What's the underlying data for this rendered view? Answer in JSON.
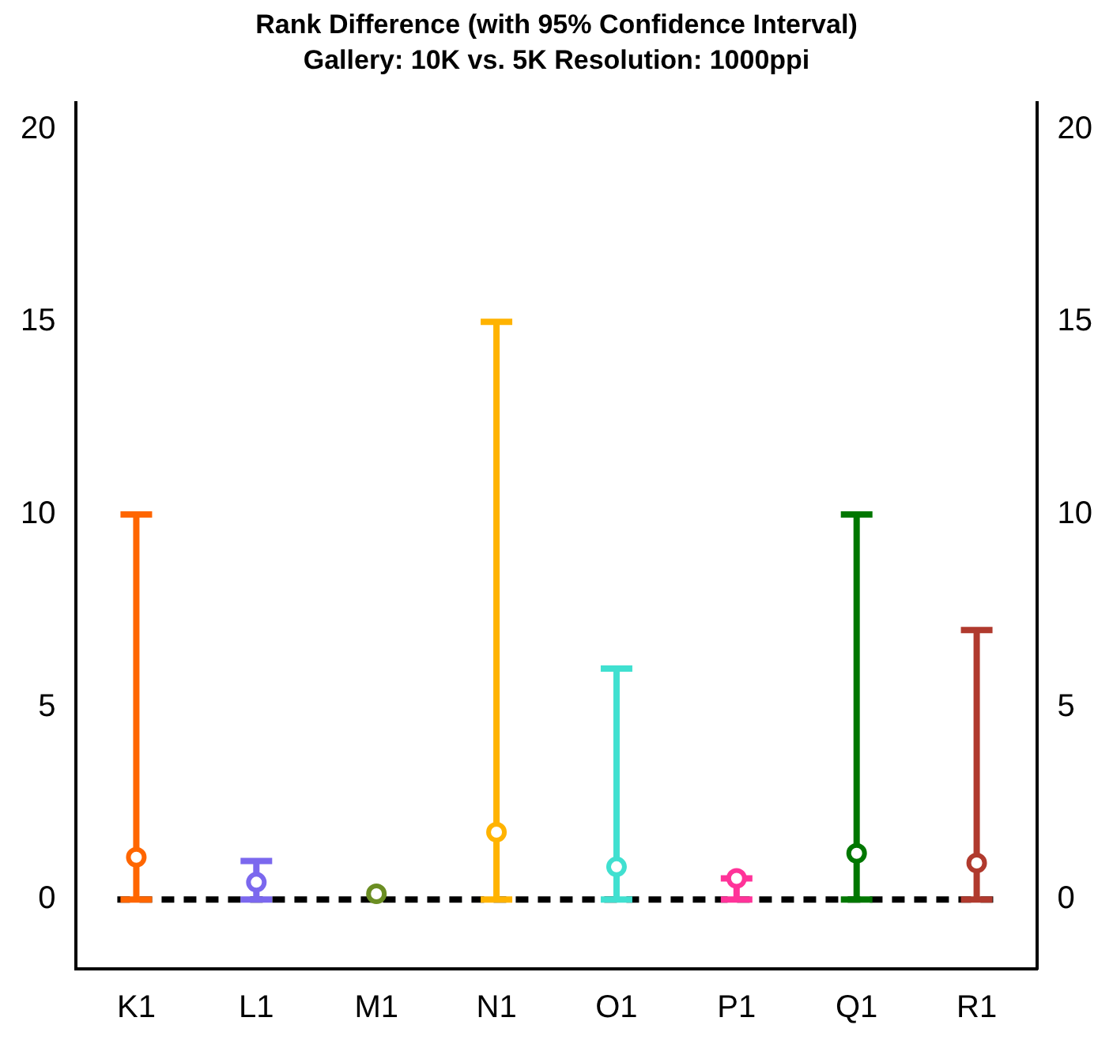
{
  "chart_data": {
    "type": "scatter",
    "title": "Rank Difference (with 95% Confidence Interval)",
    "subtitle": "Gallery: 10K vs. 5K Resolution: 1000ppi",
    "categories": [
      "K1",
      "L1",
      "M1",
      "N1",
      "O1",
      "P1",
      "Q1",
      "R1"
    ],
    "values": [
      1.1,
      0.45,
      0.15,
      1.75,
      0.85,
      0.55,
      1.2,
      0.95
    ],
    "colors": [
      "#ff6600",
      "#7b68ee",
      "#6b8e23",
      "#ffb300",
      "#40e0d0",
      "#ff3399",
      "#007700",
      "#b03a2e"
    ],
    "errors": [
      [
        0,
        10
      ],
      [
        0,
        1
      ],
      null,
      [
        0,
        15
      ],
      [
        0,
        6
      ],
      [
        0,
        0.55
      ],
      [
        0,
        10
      ],
      [
        0,
        7
      ]
    ],
    "ylim": [
      -1.8,
      20.7
    ],
    "yticks": [
      0,
      5,
      10,
      15,
      20
    ],
    "y2lim": [
      -1.8,
      20.7
    ],
    "y2ticks": [
      0,
      5,
      10,
      15,
      20
    ],
    "marker": "circle",
    "grid": false,
    "legend": false,
    "ref_lines": [
      {
        "axis": "y",
        "value": 0,
        "line_style": "dashed",
        "color": "#000000"
      }
    ]
  }
}
